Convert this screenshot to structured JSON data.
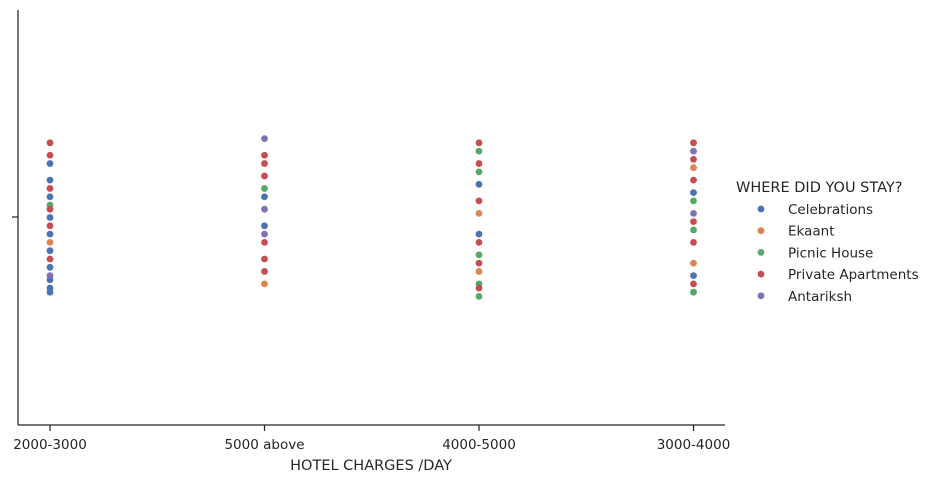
{
  "chart_data": {
    "type": "scatter",
    "subtype": "strip",
    "title": "",
    "xlabel": "HOTEL CHARGES /DAY",
    "ylabel": "",
    "categories": [
      "2000-3000",
      "5000 above",
      "4000-5000",
      "3000-4000"
    ],
    "y_range": [
      -0.5,
      0.5
    ],
    "jitter": 0.2,
    "grid": false,
    "legend": {
      "title": "WHERE DID YOU STAY?",
      "placement": "right"
    },
    "series": [
      {
        "name": "Celebrations",
        "color": "#4c72b0",
        "points": [
          {
            "category": "2000-3000",
            "offset": -0.18
          },
          {
            "category": "2000-3000",
            "offset": -0.17
          },
          {
            "category": "2000-3000",
            "offset": -0.15
          },
          {
            "category": "2000-3000",
            "offset": -0.12
          },
          {
            "category": "2000-3000",
            "offset": -0.08
          },
          {
            "category": "2000-3000",
            "offset": -0.04
          },
          {
            "category": "2000-3000",
            "offset": 0.0
          },
          {
            "category": "2000-3000",
            "offset": 0.05
          },
          {
            "category": "2000-3000",
            "offset": 0.09
          },
          {
            "category": "2000-3000",
            "offset": 0.13
          },
          {
            "category": "5000 above",
            "offset": -0.02
          },
          {
            "category": "5000 above",
            "offset": 0.05
          },
          {
            "category": "4000-5000",
            "offset": -0.04
          },
          {
            "category": "4000-5000",
            "offset": 0.08
          },
          {
            "category": "3000-4000",
            "offset": -0.14
          },
          {
            "category": "3000-4000",
            "offset": 0.06
          }
        ]
      },
      {
        "name": "Ekaant",
        "color": "#dd8452",
        "points": [
          {
            "category": "2000-3000",
            "offset": -0.06
          },
          {
            "category": "5000 above",
            "offset": -0.16
          },
          {
            "category": "4000-5000",
            "offset": -0.13
          },
          {
            "category": "4000-5000",
            "offset": 0.01
          },
          {
            "category": "3000-4000",
            "offset": -0.11
          },
          {
            "category": "3000-4000",
            "offset": 0.12
          }
        ]
      },
      {
        "name": "Picnic House",
        "color": "#55a868",
        "points": [
          {
            "category": "2000-3000",
            "offset": 0.03
          },
          {
            "category": "5000 above",
            "offset": 0.07
          },
          {
            "category": "4000-5000",
            "offset": -0.19
          },
          {
            "category": "4000-5000",
            "offset": -0.16
          },
          {
            "category": "4000-5000",
            "offset": -0.09
          },
          {
            "category": "4000-5000",
            "offset": 0.11
          },
          {
            "category": "4000-5000",
            "offset": 0.16
          },
          {
            "category": "3000-4000",
            "offset": -0.18
          },
          {
            "category": "3000-4000",
            "offset": -0.03
          },
          {
            "category": "3000-4000",
            "offset": 0.04
          }
        ]
      },
      {
        "name": "Private Apartments",
        "color": "#c44e52",
        "points": [
          {
            "category": "2000-3000",
            "offset": -0.1
          },
          {
            "category": "2000-3000",
            "offset": -0.02
          },
          {
            "category": "2000-3000",
            "offset": 0.02
          },
          {
            "category": "2000-3000",
            "offset": 0.07
          },
          {
            "category": "2000-3000",
            "offset": 0.15
          },
          {
            "category": "2000-3000",
            "offset": 0.18
          },
          {
            "category": "5000 above",
            "offset": -0.13
          },
          {
            "category": "5000 above",
            "offset": -0.1
          },
          {
            "category": "5000 above",
            "offset": -0.06
          },
          {
            "category": "5000 above",
            "offset": 0.1
          },
          {
            "category": "5000 above",
            "offset": 0.13
          },
          {
            "category": "5000 above",
            "offset": 0.15
          },
          {
            "category": "4000-5000",
            "offset": -0.17
          },
          {
            "category": "4000-5000",
            "offset": -0.11
          },
          {
            "category": "4000-5000",
            "offset": -0.06
          },
          {
            "category": "4000-5000",
            "offset": 0.04
          },
          {
            "category": "4000-5000",
            "offset": 0.13
          },
          {
            "category": "4000-5000",
            "offset": 0.18
          },
          {
            "category": "3000-4000",
            "offset": -0.16
          },
          {
            "category": "3000-4000",
            "offset": -0.06
          },
          {
            "category": "3000-4000",
            "offset": -0.01
          },
          {
            "category": "3000-4000",
            "offset": 0.09
          },
          {
            "category": "3000-4000",
            "offset": 0.14
          },
          {
            "category": "3000-4000",
            "offset": 0.18
          }
        ]
      },
      {
        "name": "Antariksh",
        "color": "#8172b3",
        "points": [
          {
            "category": "2000-3000",
            "offset": -0.14
          },
          {
            "category": "5000 above",
            "offset": -0.04
          },
          {
            "category": "5000 above",
            "offset": 0.02
          },
          {
            "category": "5000 above",
            "offset": 0.19
          },
          {
            "category": "3000-4000",
            "offset": 0.01
          },
          {
            "category": "3000-4000",
            "offset": 0.16
          }
        ]
      }
    ]
  }
}
